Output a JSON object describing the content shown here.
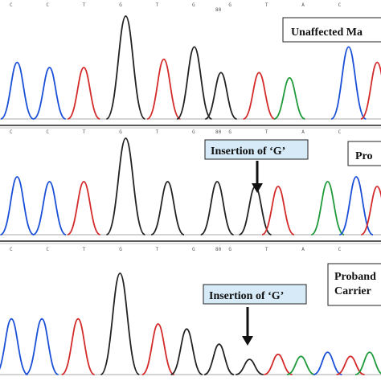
{
  "panels": [
    {
      "id": "unaffected",
      "bases": [
        "C",
        "C",
        "T",
        "G",
        "T",
        "G",
        "G",
        "T",
        "A",
        "C"
      ],
      "position_marker": "80",
      "label": "Unaffected Ma",
      "annotation": "",
      "peaks": [
        {
          "base": "C",
          "color": "#1a4fd8",
          "height": 0.55,
          "x": 0.045
        },
        {
          "base": "C",
          "color": "#1a4fd8",
          "height": 0.5,
          "x": 0.13
        },
        {
          "base": "T",
          "color": "#d42a2a",
          "height": 0.5,
          "x": 0.22
        },
        {
          "base": "G",
          "color": "#222222",
          "height": 1.0,
          "x": 0.33
        },
        {
          "base": "T",
          "color": "#d42a2a",
          "height": 0.58,
          "x": 0.43
        },
        {
          "base": "G",
          "color": "#222222",
          "height": 0.7,
          "x": 0.51
        },
        {
          "base": "G",
          "color": "#222222",
          "height": 0.45,
          "x": 0.58
        },
        {
          "base": "T",
          "color": "#d42a2a",
          "height": 0.45,
          "x": 0.68
        },
        {
          "base": "A",
          "color": "#1f9a3a",
          "height": 0.4,
          "x": 0.76
        },
        {
          "base": "C",
          "color": "#1a4fd8",
          "height": 0.7,
          "x": 0.915
        },
        {
          "base": "T",
          "color": "#d42a2a",
          "height": 0.55,
          "x": 0.99
        }
      ]
    },
    {
      "id": "proband",
      "bases": [
        "C",
        "C",
        "T",
        "G",
        "T",
        "G",
        "G",
        "T",
        "A",
        "C"
      ],
      "position_marker": "80",
      "label": "Pro",
      "annotation": "Insertion of ‘G’",
      "peaks": [
        {
          "base": "C",
          "color": "#1a4fd8",
          "height": 0.6,
          "x": 0.045
        },
        {
          "base": "C",
          "color": "#1a4fd8",
          "height": 0.55,
          "x": 0.13
        },
        {
          "base": "T",
          "color": "#d42a2a",
          "height": 0.55,
          "x": 0.22
        },
        {
          "base": "G",
          "color": "#222222",
          "height": 1.0,
          "x": 0.33
        },
        {
          "base": "G",
          "color": "#222222",
          "height": 0.55,
          "x": 0.44
        },
        {
          "base": "G",
          "color": "#222222",
          "height": 0.55,
          "x": 0.57
        },
        {
          "base": "G",
          "color": "#222222",
          "height": 0.5,
          "x": 0.67
        },
        {
          "base": "T",
          "color": "#d42a2a",
          "height": 0.5,
          "x": 0.73
        },
        {
          "base": "A",
          "color": "#1f9a3a",
          "height": 0.55,
          "x": 0.86
        },
        {
          "base": "C",
          "color": "#1a4fd8",
          "height": 0.6,
          "x": 0.935
        },
        {
          "base": "T",
          "color": "#d42a2a",
          "height": 0.5,
          "x": 0.99
        }
      ]
    },
    {
      "id": "carrier",
      "bases": [
        "C",
        "C",
        "T",
        "G",
        "T",
        "G",
        "G",
        "T",
        "A",
        "C"
      ],
      "position_marker": "80",
      "label": "Proband\nCarrier",
      "annotation": "Insertion of ‘G’",
      "peaks": [
        {
          "base": "C",
          "color": "#1a4fd8",
          "height": 0.55,
          "x": 0.03
        },
        {
          "base": "C",
          "color": "#1a4fd8",
          "height": 0.55,
          "x": 0.11
        },
        {
          "base": "T",
          "color": "#d42a2a",
          "height": 0.55,
          "x": 0.205
        },
        {
          "base": "G",
          "color": "#222222",
          "height": 1.0,
          "x": 0.315
        },
        {
          "base": "T",
          "color": "#d42a2a",
          "height": 0.5,
          "x": 0.415
        },
        {
          "base": "G",
          "color": "#222222",
          "height": 0.45,
          "x": 0.49
        },
        {
          "base": "G",
          "color": "#222222",
          "height": 0.3,
          "x": 0.575
        },
        {
          "base": "G",
          "color": "#222222",
          "height": 0.15,
          "x": 0.655
        },
        {
          "base": "T",
          "color": "#d42a2a",
          "height": 0.2,
          "x": 0.73
        },
        {
          "base": "A",
          "color": "#1f9a3a",
          "height": 0.18,
          "x": 0.79
        },
        {
          "base": "C",
          "color": "#1a4fd8",
          "height": 0.22,
          "x": 0.86
        },
        {
          "base": "T",
          "color": "#d42a2a",
          "height": 0.18,
          "x": 0.92
        },
        {
          "base": "A",
          "color": "#1f9a3a",
          "height": 0.22,
          "x": 0.97
        }
      ]
    }
  ],
  "colors": {
    "label_box_fill": "#d6ebf7",
    "trace_baseline": "#555555",
    "panel_border": "#222222"
  }
}
